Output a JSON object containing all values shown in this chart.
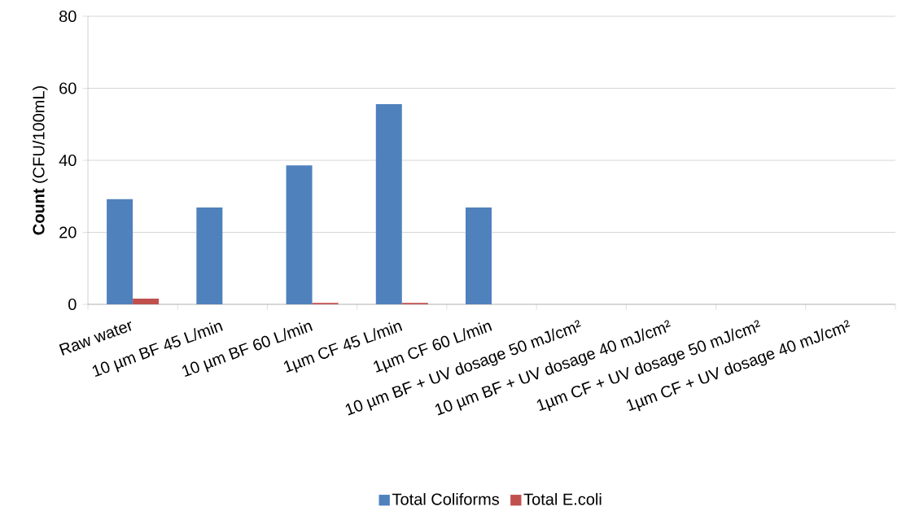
{
  "chart_data": {
    "type": "bar",
    "ylabel": "**Count** (CFU/100mL)",
    "categories": [
      "Raw water",
      "10 µm BF 45 L/min",
      "10 µm BF 60 L/min",
      "1µm CF 45 L/min",
      "1µm CF 60 L/min",
      "10 µm BF + UV dosage 50 mJ/cm²",
      "10 µm BF + UV dosage 40 mJ/cm²",
      "1µm CF + UV dosage 50 mJ/cm²",
      "1µm CF + UV dosage 40 mJ/cm²"
    ],
    "series": [
      {
        "name": "Total Coliforms",
        "color": "#4f81bd",
        "values": [
          29.2,
          26.9,
          38.6,
          55.6,
          26.9,
          0,
          0,
          0,
          0
        ]
      },
      {
        "name": "Total E.coli",
        "color": "#c0504d",
        "values": [
          1.6,
          0,
          0.4,
          0.4,
          0,
          0,
          0,
          0,
          0
        ]
      }
    ],
    "ylim": [
      0,
      80
    ],
    "yticks": [
      0,
      20,
      40,
      60,
      80
    ],
    "grid": "y",
    "legend": "bottom"
  }
}
